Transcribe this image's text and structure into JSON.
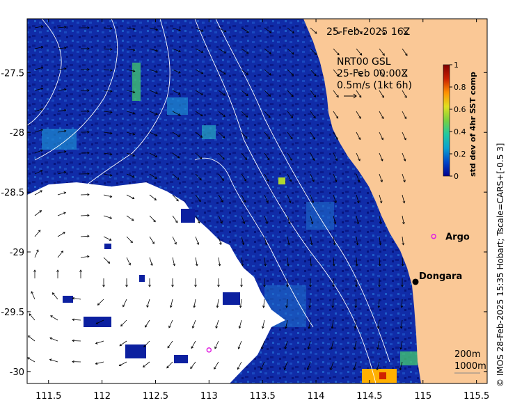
{
  "header": {
    "datetime": "25-Feb-2025 16Z"
  },
  "model_info": {
    "line1": "NRT00 GSL",
    "line2": "25-Feb 00:00Z",
    "line3": "0.5m/s (1kt 6h)"
  },
  "colorbar": {
    "label": "std dev of 4hr SST comp",
    "ticks": [
      "0",
      "0.2",
      "0.4",
      "0.6",
      "0.8",
      "1"
    ],
    "colors": [
      "#00008f",
      "#0046c8",
      "#0aa0d0",
      "#20c8a0",
      "#78d040",
      "#e0e020",
      "#ff9000",
      "#c81e00",
      "#800000"
    ]
  },
  "axes": {
    "x_ticks": [
      "111.5",
      "112",
      "112.5",
      "113",
      "113.5",
      "114",
      "114.5",
      "115",
      "115.5"
    ],
    "y_ticks": [
      "-27.5",
      "-28",
      "-28.5",
      "-29",
      "-29.5",
      "-30"
    ],
    "x_range": [
      111.3,
      115.6
    ],
    "y_range": [
      -27.05,
      -30.1
    ]
  },
  "places": [
    {
      "name": "Argo",
      "lon": 115.1,
      "lat": -28.87,
      "marker": "circle-magenta"
    },
    {
      "name": "Dongara",
      "lon": 114.93,
      "lat": -29.25,
      "marker": "dot-black"
    }
  ],
  "extra_markers": [
    {
      "lon": 113.0,
      "lat": -29.82
    }
  ],
  "depth_legend": {
    "line1": "200m",
    "line2": "1000m"
  },
  "credit": "© IMOS 28-Feb-2025 15:35 Hobart; Tscale=CARS+[-0.5 3]",
  "colors": {
    "land": "#fac896",
    "ocean_deep": "#0a1e9c",
    "cloud": "#ffffff",
    "argo": "#e020e0"
  }
}
